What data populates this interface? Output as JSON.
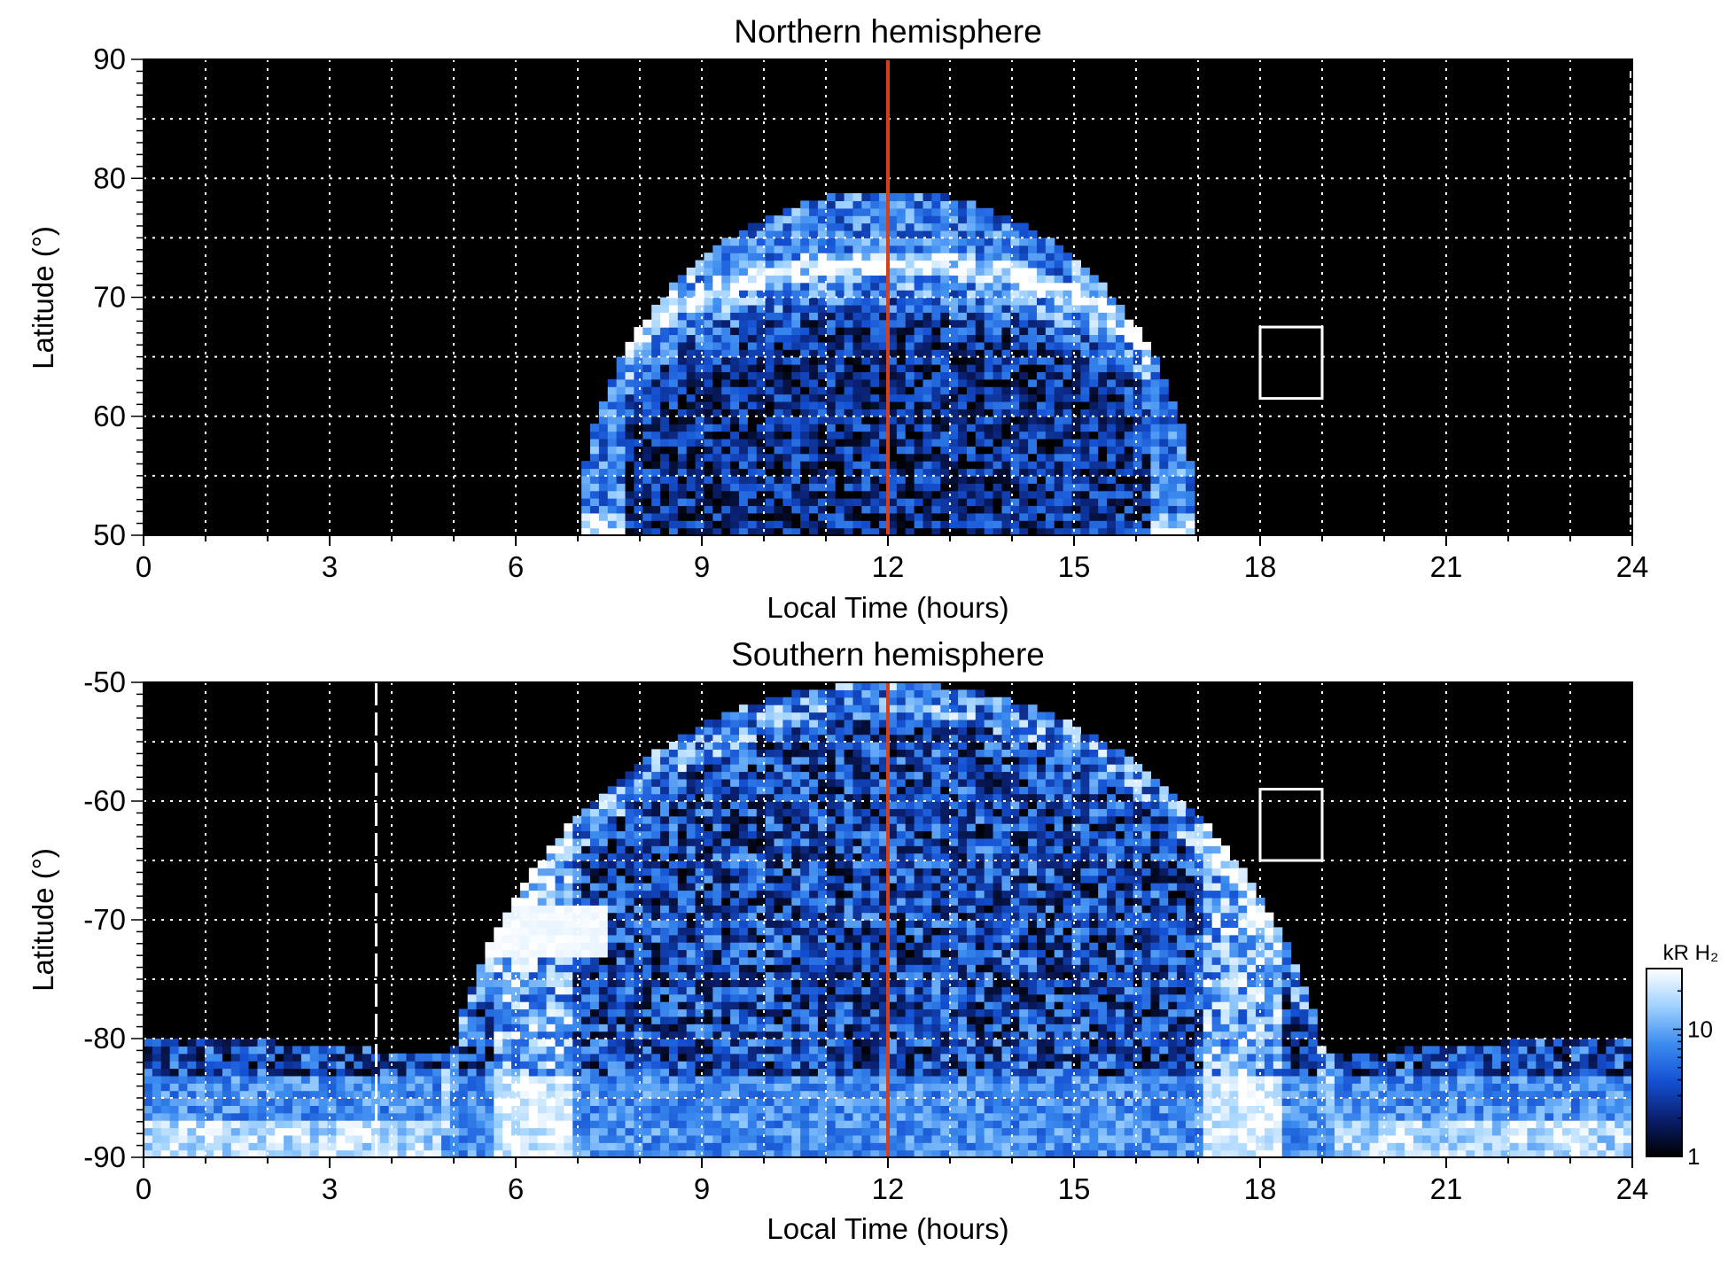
{
  "chart_data": [
    {
      "type": "heatmap",
      "title": "Northern hemisphere",
      "xlabel": "Local Time (hours)",
      "ylabel": "Latitude (°)",
      "xlim": [
        0,
        24
      ],
      "ylim": [
        50,
        90
      ],
      "x_ticks": [
        "0",
        "3",
        "6",
        "9",
        "12",
        "15",
        "18",
        "21",
        "24"
      ],
      "y_ticks": [
        "50",
        "60",
        "70",
        "80",
        "90"
      ],
      "grid": true,
      "noon_line_x": 12,
      "emission_region": {
        "x_range": [
          7,
          17
        ],
        "lat_range": [
          50,
          79
        ]
      },
      "auroral_oval": {
        "center_x": 12,
        "half_width_hours": 4.2,
        "peak_lat": 72,
        "min_lat": 63
      },
      "box": {
        "x_range": [
          18,
          19
        ],
        "lat_range": [
          61.5,
          67.5
        ]
      }
    },
    {
      "type": "heatmap",
      "title": "Southern hemisphere",
      "xlabel": "Local Time (hours)",
      "ylabel": "Latitude (°)",
      "xlim": [
        0,
        24
      ],
      "ylim": [
        -90,
        -50
      ],
      "x_ticks": [
        "0",
        "3",
        "6",
        "9",
        "12",
        "15",
        "18",
        "21",
        "24"
      ],
      "y_ticks": [
        "-90",
        "-80",
        "-70",
        "-60",
        "-50"
      ],
      "grid": true,
      "noon_line_x": 12,
      "emission_region": {
        "x_range": [
          0,
          24
        ],
        "lat_range": [
          -90,
          -50
        ]
      },
      "bright_patch": {
        "x_range": [
          4.5,
          7.5
        ],
        "lat_range": [
          -73,
          -69
        ]
      },
      "dashed_line_x": 3.75,
      "box": {
        "x_range": [
          18,
          19
        ],
        "lat_range": [
          -65,
          -59
        ]
      }
    }
  ],
  "colorbar": {
    "label": "kR H₂",
    "scale": "log",
    "range": [
      1,
      30
    ],
    "ticks": [
      "1",
      "10"
    ],
    "colors": [
      "#000000",
      "#0a1f6e",
      "#1450d2",
      "#3c8cf0",
      "#a0d2ff",
      "#ffffff"
    ]
  },
  "colors": {
    "noon_line": "#d2401e",
    "grid": "#ffffff",
    "background": "#000000"
  }
}
